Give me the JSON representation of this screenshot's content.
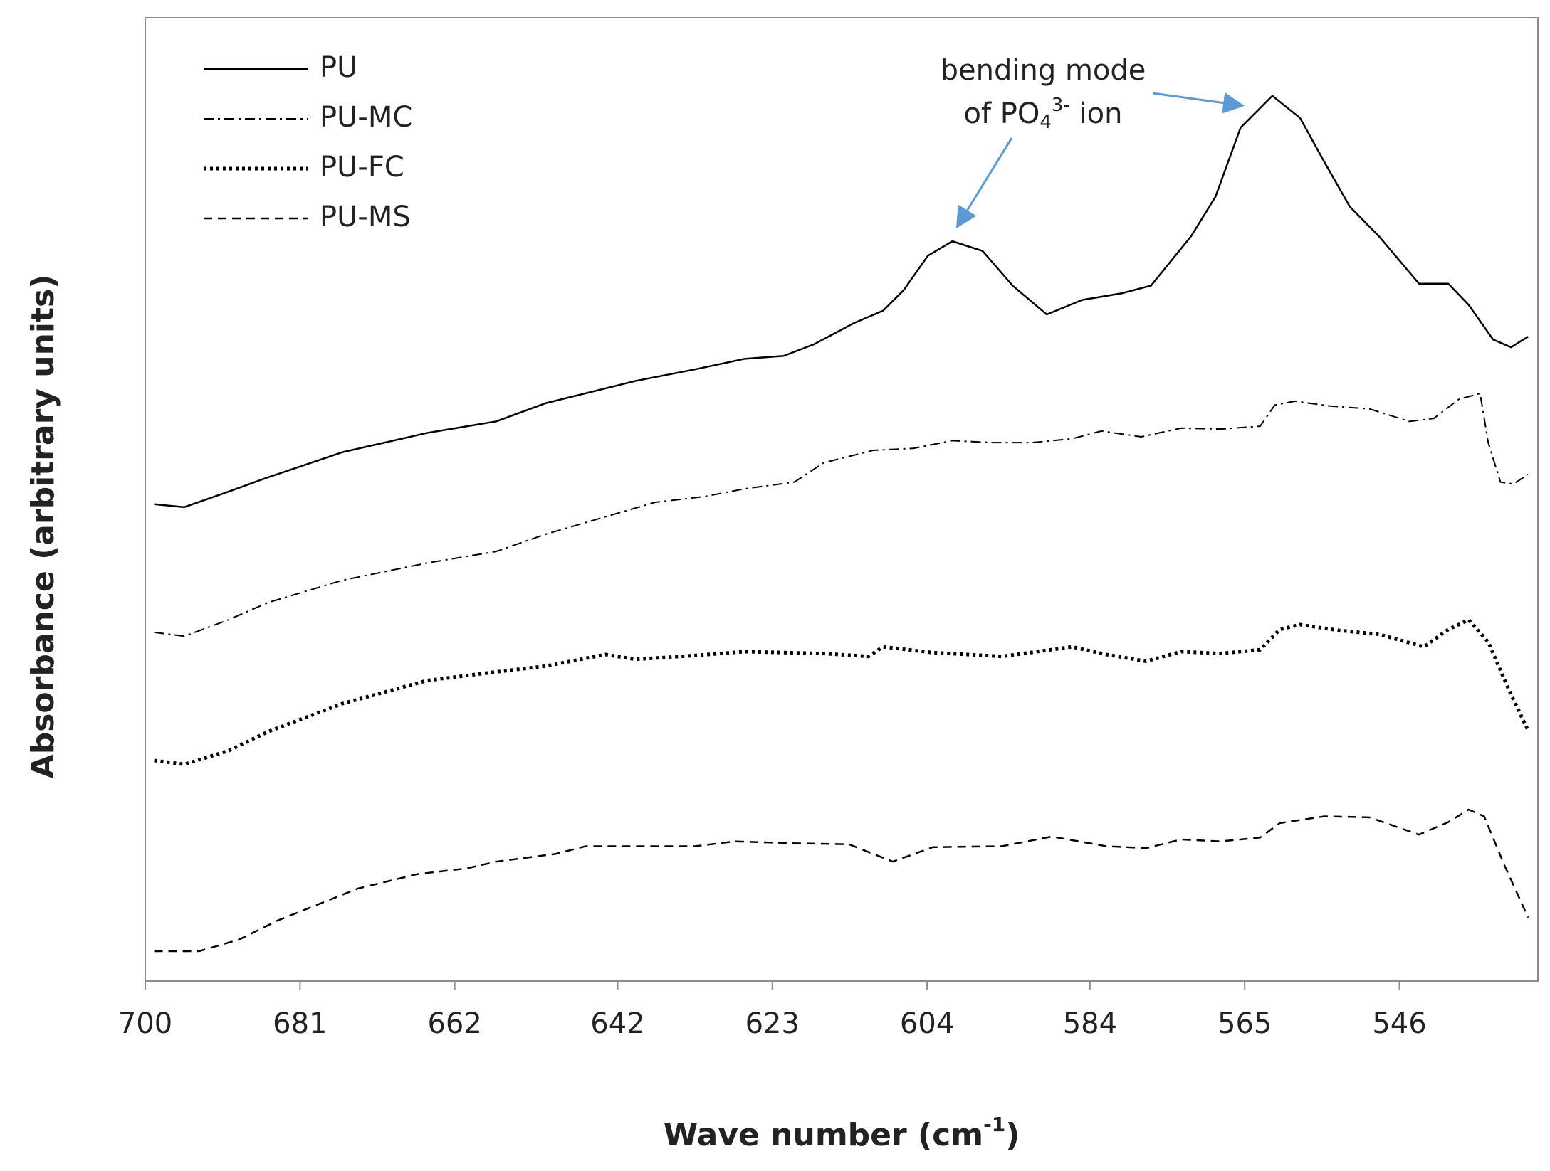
{
  "chart_data": {
    "type": "line",
    "xlabel": [
      "Wave number (cm",
      "-1",
      ")"
    ],
    "ylabel": "Absorbance  (arbitrary units)",
    "annotation": {
      "line1": "bending mode",
      "line2": [
        "of PO",
        "4",
        "3-",
        " ion"
      ]
    },
    "xlim": [
      700,
      529
    ],
    "xticks": [
      700,
      681,
      662,
      642,
      623,
      604,
      584,
      565,
      546
    ],
    "ylim": [
      0,
      100
    ],
    "legend": "top-left",
    "series": [
      {
        "name": "PU",
        "color": "#000000",
        "style": "solid",
        "x": [
          698.9,
          695.2,
          689.8,
          684.9,
          675.8,
          665.4,
          656.9,
          650.8,
          639.8,
          632.5,
          626.4,
          621.6,
          617.9,
          613.0,
          609.4,
          606.9,
          603.9,
          600.9,
          597.2,
          593.5,
          589.3,
          585.0,
          580.1,
          576.5,
          571.6,
          568.6,
          565.5,
          561.6,
          558.2,
          555.2,
          552.1,
          548.5,
          543.6,
          540.0,
          537.5,
          534.5,
          532.3,
          530.2
        ],
        "values": [
          49.5,
          49.2,
          50.8,
          52.3,
          54.9,
          56.9,
          58.1,
          60.0,
          62.3,
          63.5,
          64.6,
          64.9,
          66.1,
          68.3,
          69.6,
          71.7,
          75.3,
          76.8,
          75.8,
          72.2,
          69.2,
          70.7,
          71.4,
          72.2,
          77.3,
          81.4,
          88.6,
          91.9,
          89.6,
          85.0,
          80.4,
          77.3,
          72.4,
          72.4,
          70.2,
          66.6,
          65.8,
          66.9
        ]
      },
      {
        "name": "PU-MC",
        "color": "#000000",
        "style": "dashdot",
        "x": [
          698.9,
          695.2,
          689.8,
          684.9,
          675.8,
          665.4,
          656.9,
          650.8,
          644.7,
          637.4,
          631.3,
          626.4,
          620.3,
          616.7,
          610.6,
          605.7,
          600.9,
          596.0,
          591.1,
          586.2,
          582.6,
          577.7,
          572.8,
          568.0,
          563.1,
          561.3,
          558.8,
          554.6,
          549.7,
          544.8,
          541.8,
          538.7,
          536.1,
          535.1,
          533.6,
          532.0,
          530.2
        ],
        "values": [
          36.2,
          35.8,
          37.5,
          39.3,
          41.6,
          43.4,
          44.6,
          46.4,
          47.9,
          49.7,
          50.3,
          51.1,
          51.8,
          53.8,
          55.1,
          55.3,
          56.1,
          55.9,
          55.9,
          56.3,
          57.1,
          56.5,
          57.4,
          57.3,
          57.6,
          59.8,
          60.2,
          59.7,
          59.4,
          58.1,
          58.4,
          60.4,
          61.0,
          55.9,
          51.8,
          51.6,
          52.6
        ]
      },
      {
        "name": "PU-FC",
        "color": "#000000",
        "style": "dotted",
        "x": [
          698.9,
          695.2,
          689.8,
          684.9,
          675.8,
          665.4,
          656.9,
          650.8,
          643.5,
          639.8,
          632.5,
          626.4,
          616.7,
          611.2,
          609.4,
          603.3,
          594.8,
          586.2,
          582.0,
          577.1,
          572.8,
          568.0,
          563.1,
          560.7,
          558.2,
          553.4,
          548.5,
          543.0,
          540.0,
          537.5,
          535.1,
          532.6,
          530.2
        ],
        "values": [
          22.9,
          22.5,
          23.9,
          25.9,
          28.8,
          31.2,
          32.1,
          32.7,
          33.9,
          33.4,
          33.8,
          34.2,
          34.0,
          33.7,
          34.7,
          34.1,
          33.7,
          34.7,
          33.9,
          33.2,
          34.2,
          34.0,
          34.4,
          36.5,
          37.0,
          36.4,
          36.0,
          34.7,
          36.5,
          37.5,
          35.2,
          30.3,
          26.0
        ]
      },
      {
        "name": "PU-MS",
        "color": "#000000",
        "style": "dashed",
        "x": [
          698.9,
          693.4,
          688.5,
          683.7,
          673.9,
          666.6,
          660.5,
          656.9,
          649.6,
          645.9,
          632.5,
          627.6,
          620.3,
          613.6,
          608.2,
          603.3,
          594.8,
          588.7,
          582.0,
          577.1,
          572.8,
          568.0,
          563.1,
          560.7,
          555.2,
          549.7,
          543.6,
          540.0,
          537.5,
          535.6,
          533.1,
          530.2
        ],
        "values": [
          3.1,
          3.1,
          4.3,
          6.3,
          9.6,
          11.1,
          11.7,
          12.4,
          13.2,
          14.0,
          14.0,
          14.5,
          14.3,
          14.2,
          12.4,
          13.9,
          14.0,
          15.0,
          14.0,
          13.8,
          14.7,
          14.5,
          14.9,
          16.4,
          17.1,
          17.0,
          15.2,
          16.5,
          17.8,
          17.1,
          12.0,
          6.6
        ]
      }
    ]
  }
}
